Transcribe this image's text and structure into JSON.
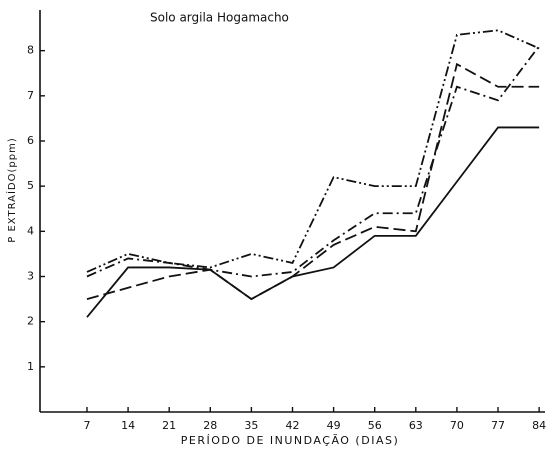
{
  "chart_data": {
    "type": "line",
    "title": "Solo argila Hogamacho",
    "x_label": "PERÍODO DE INUNDAÇÃO (DIAS)",
    "y_label": "P EXTRAÍDO(ppm)",
    "x": [
      7,
      14,
      21,
      28,
      35,
      42,
      49,
      56,
      63,
      70,
      77,
      84
    ],
    "xlim": [
      -1,
      85
    ],
    "xticks": [
      7,
      14,
      21,
      28,
      35,
      42,
      49,
      56,
      63,
      70,
      77,
      84
    ],
    "ylim": [
      0,
      8.9
    ],
    "yticks": [
      1,
      2,
      3,
      4,
      5,
      6,
      7,
      8
    ],
    "grid": false,
    "series": [
      {
        "color": "#111111",
        "dash": "solid",
        "values": [
          2.1,
          3.2,
          3.2,
          3.15,
          2.5,
          3.0,
          3.2,
          3.9,
          3.9,
          5.1,
          6.3,
          6.3
        ]
      },
      {
        "color": "#111111",
        "dash": "dashed",
        "values": [
          2.5,
          2.75,
          3.0,
          3.15,
          2.5,
          3.0,
          3.7,
          4.1,
          4.0,
          7.7,
          7.2,
          7.2
        ]
      },
      {
        "color": "#111111",
        "dash": "dashdot",
        "values": [
          3.0,
          3.4,
          3.3,
          3.15,
          3.0,
          3.1,
          3.8,
          4.4,
          4.4,
          7.2,
          6.9,
          8.1
        ]
      },
      {
        "color": "#111111",
        "dash": "dashdotdot",
        "values": [
          3.1,
          3.5,
          3.3,
          3.2,
          3.5,
          3.3,
          5.2,
          5.0,
          5.0,
          8.35,
          8.45,
          8.05
        ]
      }
    ]
  }
}
